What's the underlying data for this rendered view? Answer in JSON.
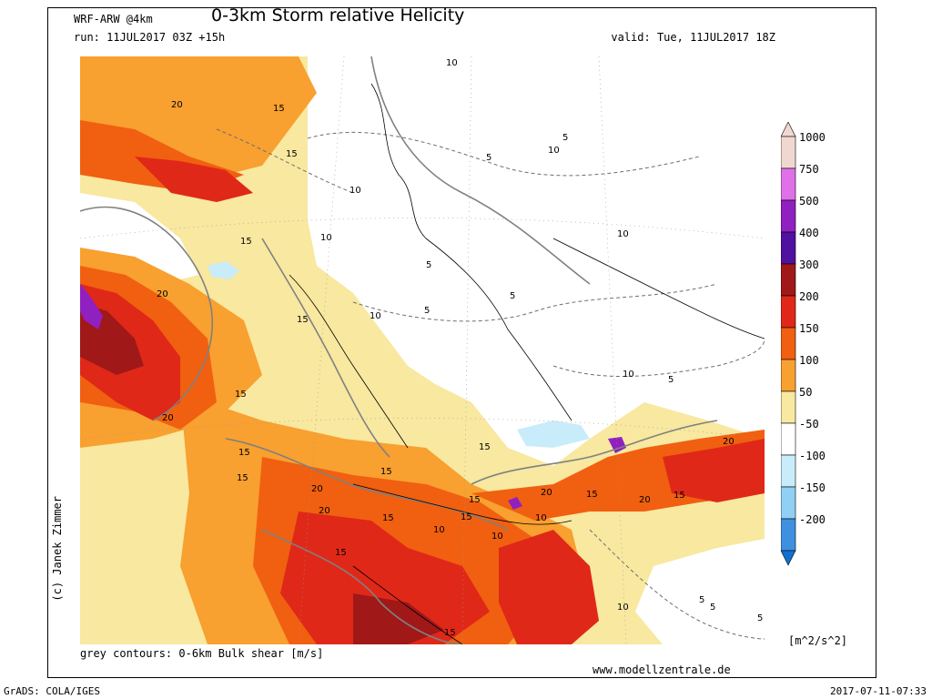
{
  "header": {
    "model": "WRF-ARW @4km",
    "title": "0-3km Storm relative Helicity",
    "run": "run: 11JUL2017 03Z +15h",
    "valid": "valid: Tue, 11JUL2017 18Z"
  },
  "footer": {
    "contours_note": "grey contours: 0-6km Bulk shear [m/s]",
    "website": "www.modellzentrale.de",
    "author": "(c) Janek Zimmer",
    "grads": "GrADS: COLA/IGES",
    "timestamp": "2017-07-11-07:33"
  },
  "colorbar": {
    "units": "[m^2/s^2]",
    "levels": [
      {
        "label": "1000",
        "color": "#f0d8d0"
      },
      {
        "label": "750",
        "color": "#e070e8"
      },
      {
        "label": "500",
        "color": "#9020c0"
      },
      {
        "label": "400",
        "color": "#5010a0"
      },
      {
        "label": "300",
        "color": "#a01818"
      },
      {
        "label": "200",
        "color": "#e02818"
      },
      {
        "label": "150",
        "color": "#f06010"
      },
      {
        "label": "100",
        "color": "#f8a030"
      },
      {
        "label": "50",
        "color": "#f8e8a0"
      },
      {
        "label": "-50",
        "color": "#ffffff"
      },
      {
        "label": "-100",
        "color": "#c8ecfa"
      },
      {
        "label": "-150",
        "color": "#90d0f4"
      },
      {
        "label": "-200",
        "color": "#4090e0"
      }
    ],
    "bottom_color": "#1070d0"
  },
  "contour_labels": [
    {
      "t": "20"
    },
    {
      "t": "15"
    },
    {
      "t": "15"
    },
    {
      "t": "10"
    },
    {
      "t": "10"
    },
    {
      "t": "5"
    },
    {
      "t": "10"
    },
    {
      "t": "15"
    },
    {
      "t": "20"
    },
    {
      "t": "15"
    },
    {
      "t": "10"
    },
    {
      "t": "5"
    },
    {
      "t": "20"
    },
    {
      "t": "15"
    },
    {
      "t": "15"
    },
    {
      "t": "10"
    },
    {
      "t": "5"
    },
    {
      "t": "15"
    },
    {
      "t": "20"
    },
    {
      "t": "15"
    },
    {
      "t": "15"
    },
    {
      "t": "10"
    },
    {
      "t": "15"
    },
    {
      "t": "20"
    },
    {
      "t": "15"
    },
    {
      "t": "20"
    },
    {
      "t": "10"
    },
    {
      "t": "15"
    },
    {
      "t": "15"
    },
    {
      "t": "20"
    },
    {
      "t": "15"
    },
    {
      "t": "5"
    },
    {
      "t": "10"
    },
    {
      "t": "5"
    },
    {
      "t": "10"
    },
    {
      "t": "5"
    },
    {
      "t": "5"
    },
    {
      "t": "20"
    },
    {
      "t": "15"
    },
    {
      "t": "10"
    },
    {
      "t": "15"
    },
    {
      "t": "5"
    },
    {
      "t": "10"
    },
    {
      "t": "5"
    }
  ]
}
